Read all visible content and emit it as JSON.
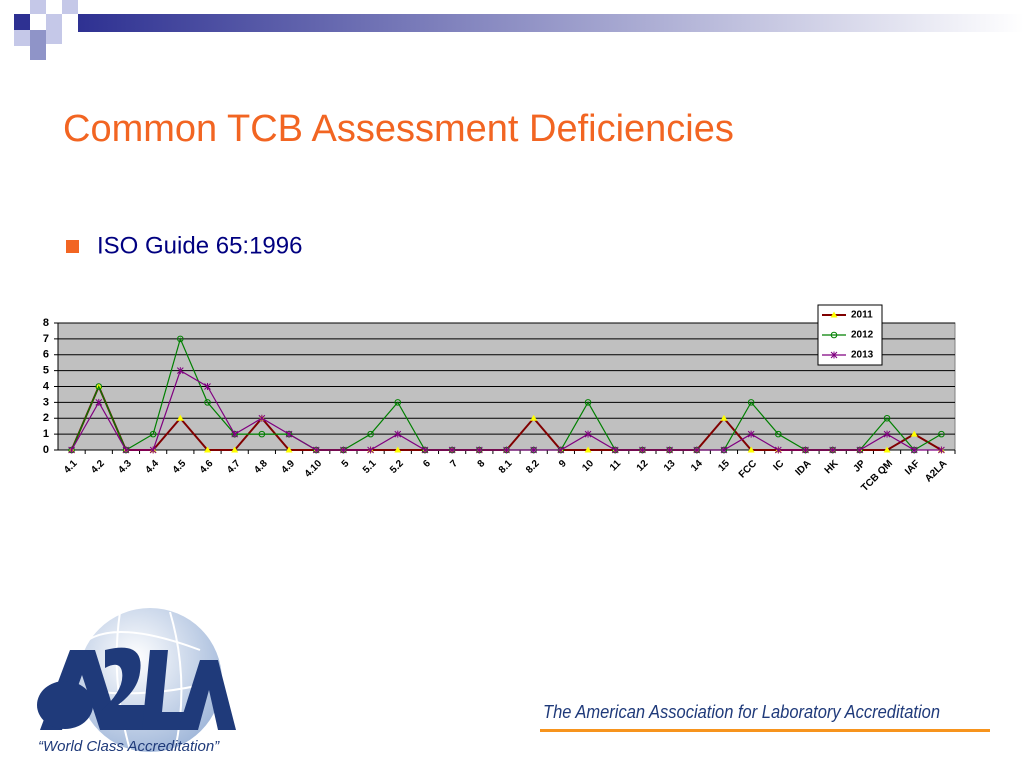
{
  "slide": {
    "title": "Common TCB Assessment Deficiencies",
    "bullet": "ISO Guide 65:1996",
    "tagline": "“World Class Accreditation”",
    "footer": "The American Association for Laboratory Accreditation"
  },
  "chart_data": {
    "type": "line",
    "categories": [
      "4.1",
      "4.2",
      "4.3",
      "4.4",
      "4.5",
      "4.6",
      "4.7",
      "4.8",
      "4.9",
      "4.10",
      "5",
      "5.1",
      "5.2",
      "6",
      "7",
      "8",
      "8.1",
      "8.2",
      "9",
      "10",
      "11",
      "12",
      "13",
      "14",
      "15",
      "FCC",
      "IC",
      "IDA",
      "HK",
      "JP",
      "TCB QM",
      "IAF",
      "A2LA"
    ],
    "series": [
      {
        "name": "2011",
        "color": "#800000",
        "marker": "triangle",
        "marker_color": "#ffff00",
        "values": [
          0,
          4,
          0,
          0,
          2,
          0,
          0,
          2,
          0,
          0,
          0,
          0,
          0,
          0,
          0,
          0,
          0,
          2,
          0,
          0,
          0,
          0,
          0,
          0,
          2,
          0,
          0,
          0,
          0,
          0,
          0,
          1,
          0
        ]
      },
      {
        "name": "2012",
        "color": "#008000",
        "marker": "circle",
        "marker_color": "#008000",
        "values": [
          0,
          4,
          0,
          1,
          7,
          3,
          1,
          1,
          1,
          0,
          0,
          1,
          3,
          0,
          0,
          0,
          0,
          0,
          0,
          3,
          0,
          0,
          0,
          0,
          0,
          3,
          1,
          0,
          0,
          0,
          2,
          0,
          1
        ]
      },
      {
        "name": "2013",
        "color": "#800080",
        "marker": "x",
        "marker_color": "#800080",
        "values": [
          0,
          3,
          0,
          0,
          5,
          4,
          1,
          2,
          1,
          0,
          0,
          0,
          1,
          0,
          0,
          0,
          0,
          0,
          0,
          1,
          0,
          0,
          0,
          0,
          0,
          1,
          0,
          0,
          0,
          0,
          1,
          0,
          0
        ]
      }
    ],
    "ylim": [
      0,
      8
    ],
    "yticks": [
      0,
      1,
      2,
      3,
      4,
      5,
      6,
      7,
      8
    ],
    "grid": true,
    "legend": "top-right",
    "plot_background": "#c0c0c0"
  }
}
